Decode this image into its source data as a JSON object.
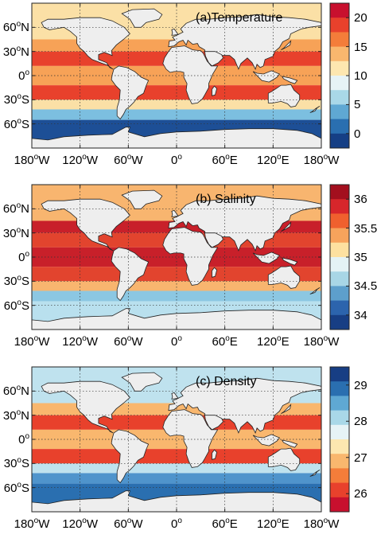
{
  "panels": [
    {
      "id": "temperature",
      "title": "(a)Temperature",
      "colorbar": {
        "ticks": [
          "20",
          "15",
          "10",
          "5",
          "0"
        ],
        "colors": [
          "#c8102e",
          "#e8412c",
          "#f47d3a",
          "#f9b76e",
          "#fde7b0",
          "#e6f3f6",
          "#a9d8e8",
          "#5fa8d3",
          "#2a6fb0",
          "#153f85"
        ]
      },
      "field_colors": {
        "tropics": "#e8412c",
        "subtropics": "#f7a257",
        "mid": "#fbe0a6",
        "southern": "#7cbfe0",
        "polar": "#1d4f96"
      }
    },
    {
      "id": "salinity",
      "title": "(b) Salinity",
      "colorbar": {
        "ticks": [
          "36",
          "35.5",
          "35",
          "34.5",
          "34"
        ],
        "colors": [
          "#a30f1e",
          "#d7262b",
          "#f0602e",
          "#f7a35c",
          "#fde1a0",
          "#e4f3f5",
          "#a8d6e6",
          "#5d9fcc",
          "#2c64ad",
          "#173e84"
        ]
      },
      "field_colors": {
        "tropics": "#e2442e",
        "subtropics": "#c8202a",
        "mid": "#f8b56f",
        "southern": "#8cc7e2",
        "polar": "#b9e0ee"
      }
    },
    {
      "id": "density",
      "title": "(c) Density",
      "colorbar": {
        "ticks": [
          "29",
          "28",
          "27",
          "26"
        ],
        "colors": [
          "#173e84",
          "#2a6fb0",
          "#5fa8d3",
          "#a9d8e8",
          "#e6f3f6",
          "#fde7b0",
          "#f9b76e",
          "#f47d3a",
          "#e8412c",
          "#c8102e"
        ]
      },
      "field_colors": {
        "tropics": "#e8412c",
        "subtropics": "#f9b76e",
        "mid": "#bfe2ee",
        "southern": "#4f94cc",
        "polar": "#2a6fb0"
      }
    }
  ],
  "axes": {
    "y_ticks": [
      "60°N",
      "30°N",
      "0°",
      "30°S",
      "60°S"
    ],
    "x_ticks": [
      "180°W",
      "120°W",
      "60°W",
      "0°",
      "60°E",
      "120°E",
      "180°W"
    ]
  }
}
